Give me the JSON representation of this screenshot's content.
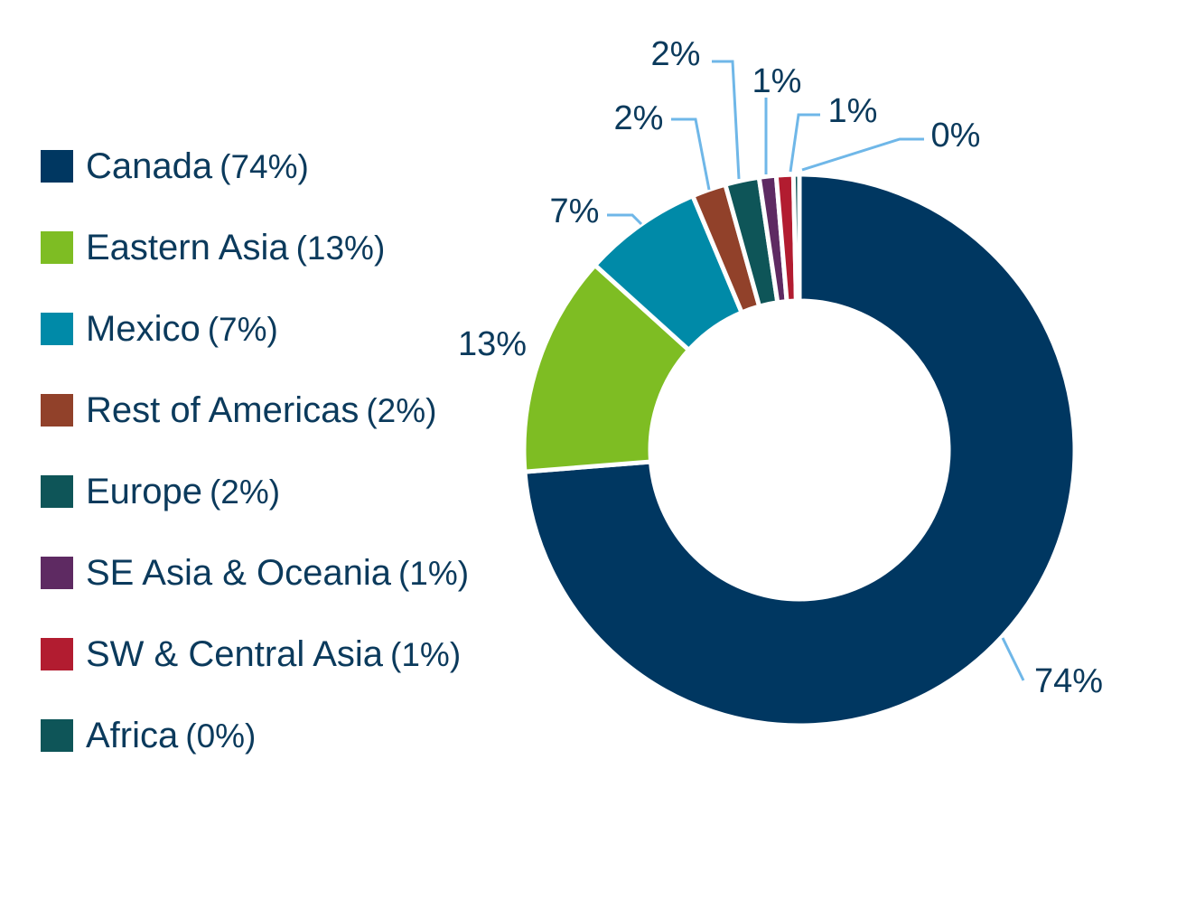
{
  "chart_data": {
    "type": "pie",
    "style": "donut",
    "categories": [
      "Canada",
      "Eastern Asia",
      "Mexico",
      "Rest of Americas",
      "Europe",
      "SE Asia & Oceania",
      "SW & Central Asia",
      "Africa"
    ],
    "values": [
      74,
      13,
      7,
      2,
      2,
      1,
      1,
      0
    ],
    "value_labels": [
      "74%",
      "13%",
      "7%",
      "2%",
      "2%",
      "1%",
      "1%",
      "0%"
    ],
    "legend_pct": [
      "(74%)",
      "(13%)",
      "(7%)",
      "(2%)",
      "(2%)",
      "(1%)",
      "(1%)",
      "(0%)"
    ],
    "colors": [
      "#003761",
      "#7ebd23",
      "#008aa8",
      "#91412a",
      "#0e5558",
      "#5e2a62",
      "#b21c30",
      "#0e5558"
    ],
    "leader_line_color": "#6fb7e8",
    "legend_placement": "left"
  }
}
